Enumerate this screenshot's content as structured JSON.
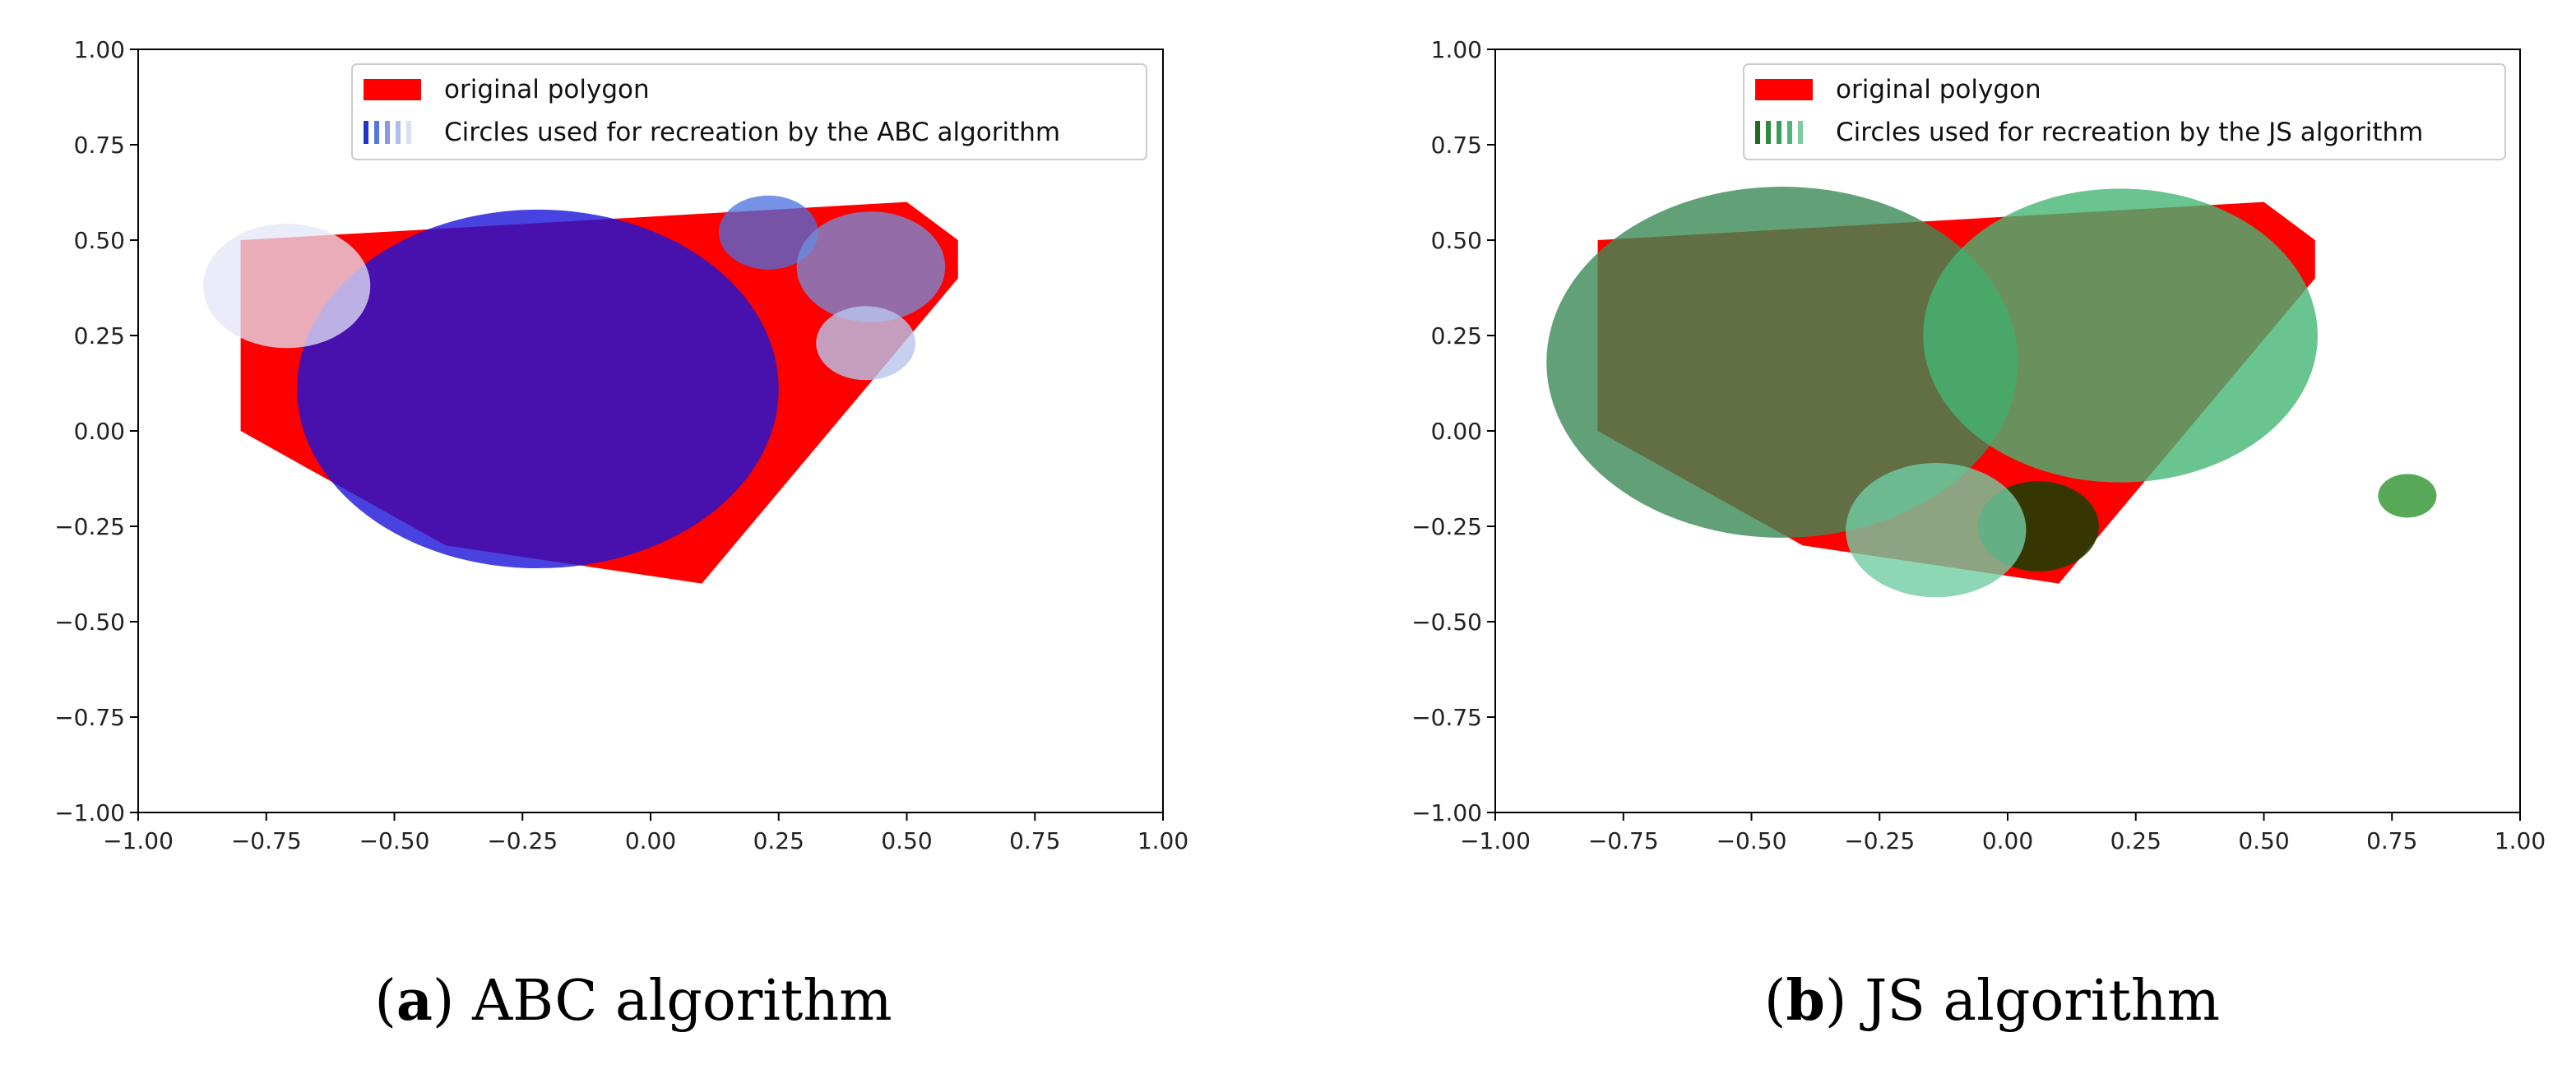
{
  "chart_data": [
    {
      "type": "scatter",
      "caption_letter": "a",
      "caption_text": "ABC algorithm",
      "xlim": [
        -1.0,
        1.0
      ],
      "ylim": [
        -1.0,
        1.0
      ],
      "xticks": [
        "−1.00",
        "−0.75",
        "−0.50",
        "−0.25",
        "0.00",
        "0.25",
        "0.50",
        "0.75",
        "1.00"
      ],
      "yticks": [
        "1.00",
        "0.75",
        "0.50",
        "0.25",
        "0.00",
        "−0.25",
        "−0.50",
        "−0.75",
        "−1.00"
      ],
      "grid": false,
      "legend_placement": "upper-center",
      "legend": [
        {
          "label": "original polygon",
          "kind": "patch",
          "color": "#ff0000"
        },
        {
          "label": "Circles used for recreation by the ABC algorithm",
          "kind": "circles",
          "colors": [
            "#2233cc",
            "#5577dd",
            "#8899e6",
            "#b0bcee",
            "#dcdff6"
          ]
        }
      ],
      "polygon": {
        "color": "#ff0000",
        "vertices": [
          [
            -0.8,
            0.5
          ],
          [
            0.5,
            0.6
          ],
          [
            0.6,
            0.5
          ],
          [
            0.6,
            0.4
          ],
          [
            0.1,
            -0.4
          ],
          [
            -0.4,
            -0.3
          ],
          [
            -0.8,
            0.0
          ]
        ]
      },
      "circles": [
        {
          "cx": -0.22,
          "cy": 0.11,
          "rx": 0.47,
          "ry": 0.47,
          "color": "#1a14d8",
          "opacity": 0.8
        },
        {
          "cx": 0.23,
          "cy": 0.52,
          "rx": 0.097,
          "ry": 0.097,
          "color": "#4a6fe0",
          "opacity": 0.75
        },
        {
          "cx": 0.43,
          "cy": 0.43,
          "rx": 0.145,
          "ry": 0.145,
          "color": "#7091e0",
          "opacity": 0.75
        },
        {
          "cx": 0.42,
          "cy": 0.23,
          "rx": 0.097,
          "ry": 0.097,
          "color": "#b8c6ec",
          "opacity": 0.8
        },
        {
          "cx": -0.71,
          "cy": 0.38,
          "rx": 0.163,
          "ry": 0.163,
          "color": "#e4e6f7",
          "opacity": 0.75
        }
      ]
    },
    {
      "type": "scatter",
      "caption_letter": "b",
      "caption_text": "JS algorithm",
      "xlim": [
        -1.0,
        1.0
      ],
      "ylim": [
        -1.0,
        1.0
      ],
      "xticks": [
        "−1.00",
        "−0.75",
        "−0.50",
        "−0.25",
        "0.00",
        "0.25",
        "0.50",
        "0.75",
        "1.00"
      ],
      "yticks": [
        "1.00",
        "0.75",
        "0.50",
        "0.25",
        "0.00",
        "−0.25",
        "−0.50",
        "−0.75",
        "−1.00"
      ],
      "grid": false,
      "legend_placement": "upper-center",
      "legend": [
        {
          "label": "original polygon",
          "kind": "patch",
          "color": "#ff0000"
        },
        {
          "label": "Circles used for recreation by the JS algorithm",
          "kind": "circles",
          "colors": [
            "#1e6b1e",
            "#2e8b3e",
            "#3a9a5c",
            "#55b37a",
            "#7fcca0"
          ]
        }
      ],
      "polygon": {
        "color": "#ff0000",
        "vertices": [
          [
            -0.8,
            0.5
          ],
          [
            0.5,
            0.6
          ],
          [
            0.6,
            0.5
          ],
          [
            0.6,
            0.4
          ],
          [
            0.1,
            -0.4
          ],
          [
            -0.4,
            -0.3
          ],
          [
            -0.8,
            0.0
          ]
        ]
      },
      "circles": [
        {
          "cx": -0.44,
          "cy": 0.18,
          "rx": 0.46,
          "ry": 0.46,
          "color": "#3b8a55",
          "opacity": 0.8
        },
        {
          "cx": 0.22,
          "cy": 0.25,
          "rx": 0.385,
          "ry": 0.385,
          "color": "#45b574",
          "opacity": 0.8
        },
        {
          "cx": 0.06,
          "cy": -0.25,
          "rx": 0.118,
          "ry": 0.118,
          "color": "#1a3f00",
          "opacity": 0.88
        },
        {
          "cx": -0.14,
          "cy": -0.26,
          "rx": 0.176,
          "ry": 0.176,
          "color": "#70cda4",
          "opacity": 0.8
        },
        {
          "cx": 0.78,
          "cy": -0.17,
          "rx": 0.057,
          "ry": 0.057,
          "color": "#3a9a3a",
          "opacity": 0.85
        }
      ]
    }
  ]
}
